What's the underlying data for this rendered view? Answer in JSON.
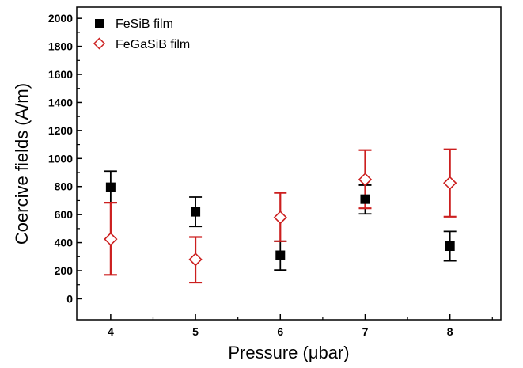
{
  "chart_data": {
    "type": "scatter",
    "title": "",
    "xlabel": "Pressure (μbar)",
    "ylabel": "Coercive fields (A/m)",
    "xlim": [
      3.6,
      8.6
    ],
    "ylim": [
      -150,
      2080
    ],
    "x_ticks": [
      4,
      5,
      6,
      7,
      8
    ],
    "y_ticks": [
      0,
      200,
      400,
      600,
      800,
      1000,
      1200,
      1400,
      1600,
      1800,
      2000
    ],
    "grid": false,
    "legend_position": "top-left",
    "series": [
      {
        "name": "FeSiB film",
        "marker": "filled-square",
        "color": "#000000",
        "x": [
          4,
          5,
          6,
          7,
          8
        ],
        "y": [
          795,
          620,
          310,
          710,
          375
        ],
        "err_low": [
          685,
          515,
          205,
          605,
          270
        ],
        "err_high": [
          910,
          725,
          410,
          810,
          480
        ]
      },
      {
        "name": "FeGaSiB film",
        "marker": "open-diamond",
        "color": "#cc1f1f",
        "x": [
          4,
          5,
          6,
          7,
          8
        ],
        "y": [
          425,
          280,
          580,
          850,
          825
        ],
        "err_low": [
          170,
          115,
          410,
          645,
          585
        ],
        "err_high": [
          685,
          440,
          755,
          1060,
          1065
        ]
      }
    ]
  }
}
